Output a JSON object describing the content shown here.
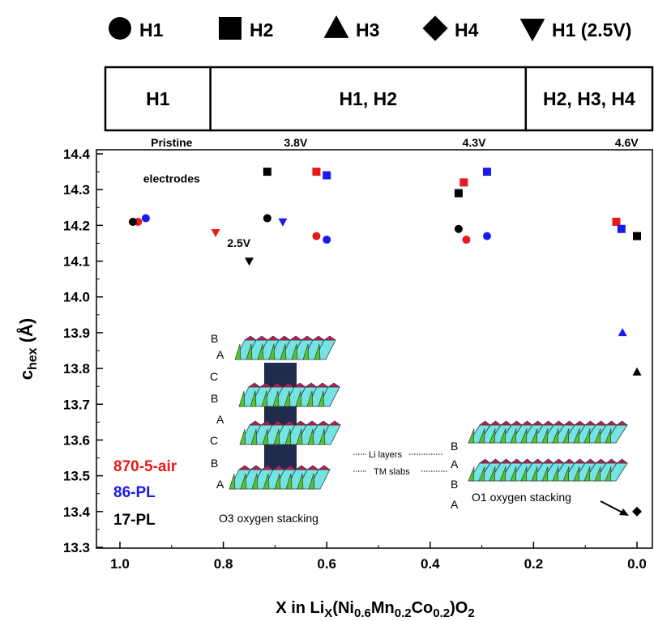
{
  "symbol_legend": [
    {
      "symbol": "circle",
      "label": "H1"
    },
    {
      "symbol": "square",
      "label": "H2"
    },
    {
      "symbol": "triangle-up",
      "label": "H3"
    },
    {
      "symbol": "diamond",
      "label": "H4"
    },
    {
      "symbol": "triangle-down",
      "label": "H1 (2.5V)"
    }
  ],
  "phase_bar": [
    {
      "label": "H1",
      "from": 1.1,
      "to": 0.825
    },
    {
      "label": "H1, H2",
      "from": 0.825,
      "to": 0.215
    },
    {
      "label": "H2, H3, H4",
      "from": 0.215,
      "to": -0.04
    }
  ],
  "voltage_labels": [
    {
      "text": "Pristine",
      "x": 0.9,
      "y": 14.42
    },
    {
      "text": "electrodes",
      "x": 0.9,
      "y": 14.32
    },
    {
      "text": "3.8V",
      "x": 0.66,
      "y": 14.42
    },
    {
      "text": "4.3V",
      "x": 0.315,
      "y": 14.42
    },
    {
      "text": "4.6V",
      "x": 0.02,
      "y": 14.42
    },
    {
      "text": "2.5V",
      "x": 0.77,
      "y": 14.14
    }
  ],
  "series_legend": [
    {
      "label": "870-5-air",
      "color": "#e8191c"
    },
    {
      "label": "86-PL",
      "color": "#1a1aee"
    },
    {
      "label": "17-PL",
      "color": "#000000"
    }
  ],
  "insets": {
    "o3": {
      "layers": [
        "B",
        "A",
        "C",
        "B",
        "A",
        "C",
        "B",
        "A"
      ],
      "caption": "O3 oxygen stacking"
    },
    "o1": {
      "layers": [
        "B",
        "A",
        "B",
        "A"
      ],
      "caption": "O1 oxygen stacking"
    },
    "li_label": "Li layers",
    "tm_label": "TM slabs"
  },
  "chart_data": {
    "type": "scatter",
    "title": "",
    "xlabel": "X in Li",
    "ylabel": "c",
    "xlim": [
      1.1,
      -0.04
    ],
    "ylim": [
      13.3,
      14.47
    ],
    "xticks": [
      "1.0",
      "0.8",
      "0.6",
      "0.4",
      "0.2",
      "0.0"
    ],
    "xtick_values": [
      1.0,
      0.8,
      0.6,
      0.4,
      0.2,
      0.0
    ],
    "yticks": [
      "13.3",
      "13.4",
      "13.5",
      "13.6",
      "13.7",
      "13.8",
      "13.9",
      "14.0",
      "14.1",
      "14.2",
      "14.3",
      "14.4"
    ],
    "ytick_values": [
      13.3,
      13.4,
      13.5,
      13.6,
      13.7,
      13.8,
      13.9,
      14.0,
      14.1,
      14.2,
      14.3,
      14.4
    ],
    "series": [
      {
        "name": "870-5-air",
        "color": "#e8191c",
        "points": [
          {
            "x": 0.965,
            "y": 14.21,
            "symbol": "circle"
          },
          {
            "x": 0.815,
            "y": 14.18,
            "symbol": "triangle-down"
          },
          {
            "x": 0.62,
            "y": 14.35,
            "symbol": "square"
          },
          {
            "x": 0.62,
            "y": 14.17,
            "symbol": "circle"
          },
          {
            "x": 0.335,
            "y": 14.32,
            "symbol": "square"
          },
          {
            "x": 0.33,
            "y": 14.16,
            "symbol": "circle"
          },
          {
            "x": 0.04,
            "y": 14.21,
            "symbol": "square"
          }
        ]
      },
      {
        "name": "86-PL",
        "color": "#1a1aee",
        "points": [
          {
            "x": 0.95,
            "y": 14.22,
            "symbol": "circle"
          },
          {
            "x": 0.685,
            "y": 14.21,
            "symbol": "triangle-down"
          },
          {
            "x": 0.6,
            "y": 14.34,
            "symbol": "square"
          },
          {
            "x": 0.6,
            "y": 14.16,
            "symbol": "circle"
          },
          {
            "x": 0.29,
            "y": 14.35,
            "symbol": "square"
          },
          {
            "x": 0.29,
            "y": 14.17,
            "symbol": "circle"
          },
          {
            "x": 0.03,
            "y": 14.19,
            "symbol": "square"
          },
          {
            "x": 0.028,
            "y": 13.9,
            "symbol": "triangle-up"
          }
        ]
      },
      {
        "name": "17-PL",
        "color": "#000000",
        "points": [
          {
            "x": 0.975,
            "y": 14.21,
            "symbol": "circle"
          },
          {
            "x": 0.75,
            "y": 14.1,
            "symbol": "triangle-down"
          },
          {
            "x": 0.715,
            "y": 14.35,
            "symbol": "square"
          },
          {
            "x": 0.715,
            "y": 14.22,
            "symbol": "circle"
          },
          {
            "x": 0.345,
            "y": 14.29,
            "symbol": "square"
          },
          {
            "x": 0.345,
            "y": 14.19,
            "symbol": "circle"
          },
          {
            "x": 0.0,
            "y": 14.17,
            "symbol": "square"
          },
          {
            "x": 0.0,
            "y": 13.79,
            "symbol": "triangle-up"
          },
          {
            "x": 0.0,
            "y": 13.4,
            "symbol": "diamond"
          }
        ]
      }
    ]
  }
}
